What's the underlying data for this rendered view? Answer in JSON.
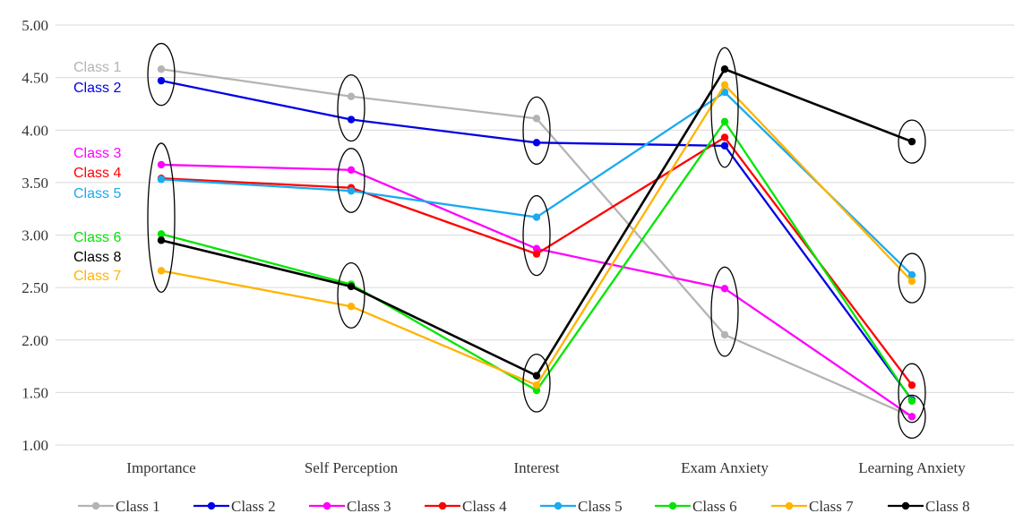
{
  "chart_data": {
    "type": "line",
    "title": "",
    "xlabel": "",
    "ylabel": "",
    "categories": [
      "Importance",
      "Self Perception",
      "Interest",
      "Exam Anxiety",
      "Learning Anxiety"
    ],
    "ylim": [
      1.0,
      5.0
    ],
    "y_ticks": [
      "1.00",
      "1.50",
      "2.00",
      "2.50",
      "3.00",
      "3.50",
      "4.00",
      "4.50",
      "5.00"
    ],
    "grid": true,
    "legend_position": "bottom",
    "series": [
      {
        "name": "Class 1",
        "color": "#b4b4b4",
        "values": [
          4.58,
          4.32,
          4.11,
          2.05,
          1.27
        ]
      },
      {
        "name": "Class 2",
        "color": "#0000e6",
        "values": [
          4.47,
          4.1,
          3.88,
          3.85,
          1.43
        ]
      },
      {
        "name": "Class 3",
        "color": "#ff00ff",
        "values": [
          3.67,
          3.62,
          2.87,
          2.49,
          1.27
        ]
      },
      {
        "name": "Class 4",
        "color": "#ff0000",
        "values": [
          3.54,
          3.45,
          2.82,
          3.93,
          1.57
        ]
      },
      {
        "name": "Class 5",
        "color": "#19aaf0",
        "values": [
          3.53,
          3.42,
          3.17,
          4.36,
          2.62
        ]
      },
      {
        "name": "Class 6",
        "color": "#00e600",
        "values": [
          3.01,
          2.53,
          1.52,
          4.08,
          1.42
        ]
      },
      {
        "name": "Class 7",
        "color": "#ffb400",
        "values": [
          2.66,
          2.32,
          1.57,
          4.43,
          2.56
        ]
      },
      {
        "name": "Class 8",
        "color": "#000000",
        "values": [
          2.95,
          2.51,
          1.66,
          4.58,
          3.89
        ]
      }
    ],
    "annotations": [
      {
        "text": "Class 1",
        "series": 0
      },
      {
        "text": "Class 2",
        "series": 1
      },
      {
        "text": "Class 3",
        "series": 2
      },
      {
        "text": "Class 4",
        "series": 3
      },
      {
        "text": "Class 5",
        "series": 4
      },
      {
        "text": "Class 6",
        "series": 5
      },
      {
        "text": "Class 8",
        "series": 7
      },
      {
        "text": "Class 7",
        "series": 6
      }
    ],
    "group_ellipses": [
      {
        "category": 0,
        "range": [
          4.44,
          4.62
        ]
      },
      {
        "category": 0,
        "range": [
          2.66,
          3.67
        ]
      },
      {
        "category": 1,
        "range": [
          4.1,
          4.32
        ]
      },
      {
        "category": 1,
        "range": [
          3.42,
          3.62
        ]
      },
      {
        "category": 1,
        "range": [
          2.32,
          2.53
        ]
      },
      {
        "category": 2,
        "range": [
          3.88,
          4.11
        ]
      },
      {
        "category": 2,
        "range": [
          2.82,
          3.17
        ]
      },
      {
        "category": 2,
        "range": [
          1.52,
          1.66
        ]
      },
      {
        "category": 3,
        "range": [
          3.85,
          4.58
        ]
      },
      {
        "category": 3,
        "range": [
          2.05,
          2.49
        ]
      },
      {
        "category": 4,
        "range": [
          3.89,
          3.89
        ]
      },
      {
        "category": 4,
        "range": [
          2.56,
          2.62
        ]
      },
      {
        "category": 4,
        "range": [
          1.42,
          1.57
        ]
      },
      {
        "category": 4,
        "range": [
          1.27,
          1.27
        ]
      }
    ]
  }
}
